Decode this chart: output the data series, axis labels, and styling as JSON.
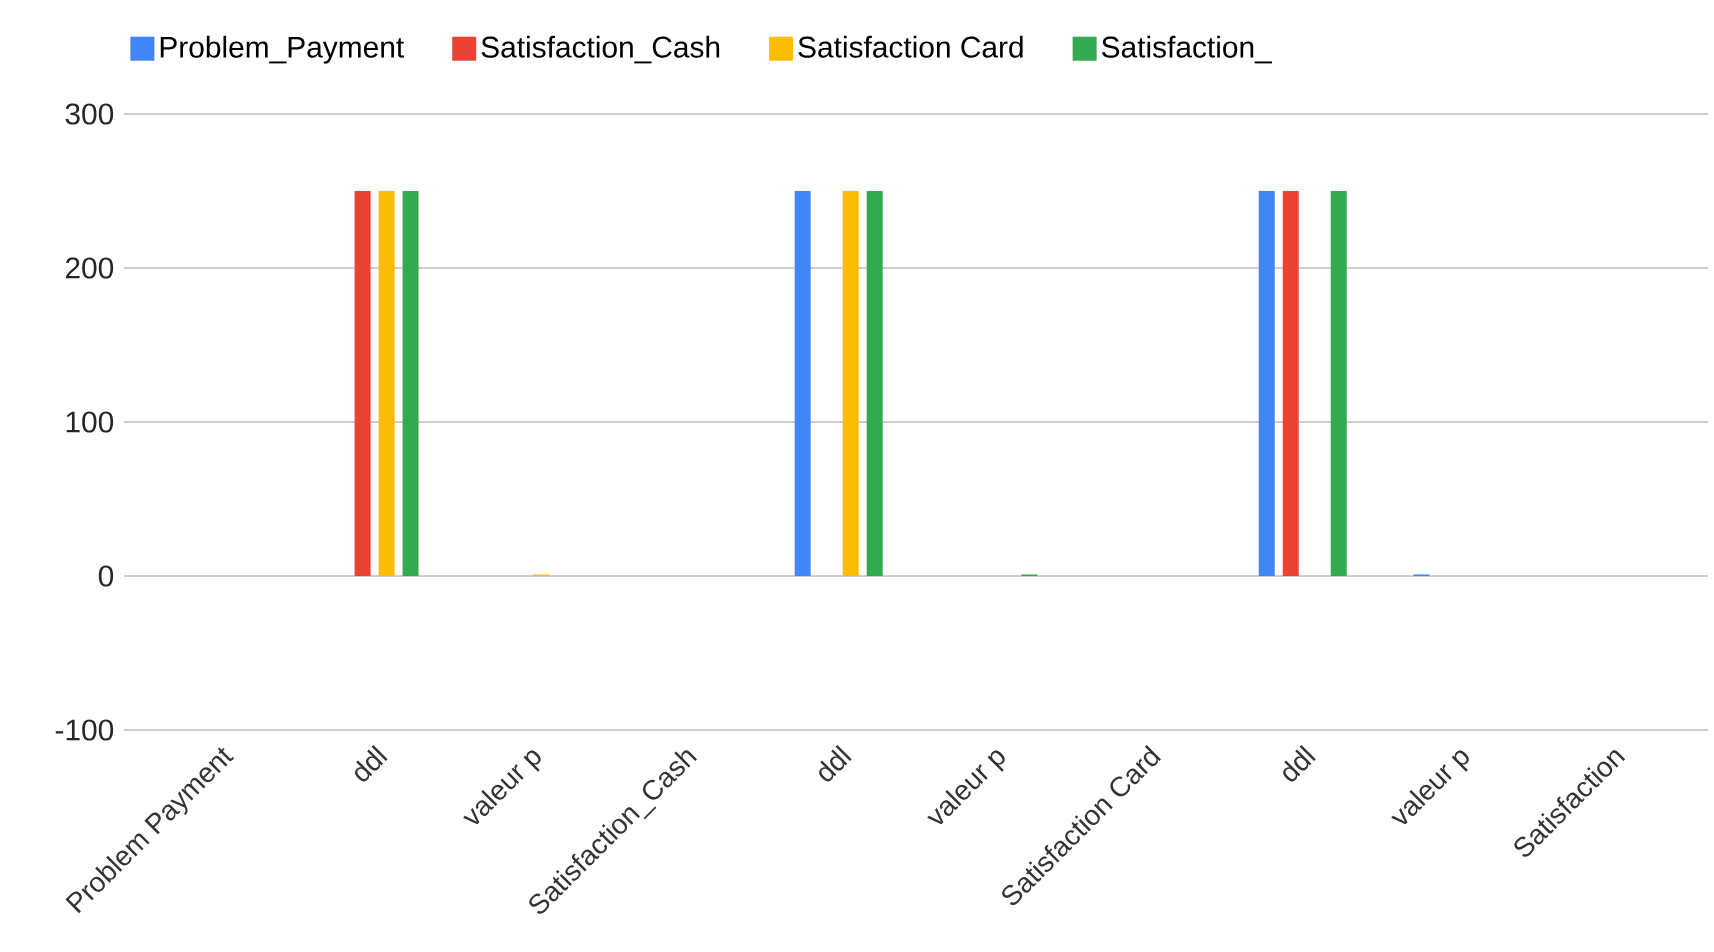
{
  "chart_data": {
    "type": "bar",
    "categories": [
      "Problem Payment",
      "ddl",
      "valeur p",
      "Satisfaction_Cash",
      "ddl",
      "valeur p",
      "Satisfaction Card",
      "ddl",
      "valeur p",
      "Satisfaction"
    ],
    "series": [
      {
        "name": "Problem_Payment",
        "color": "#4285f4",
        "values": [
          null,
          null,
          null,
          null,
          250,
          null,
          null,
          250,
          1,
          null
        ]
      },
      {
        "name": "Satisfaction_Cash",
        "color": "#ea4335",
        "values": [
          null,
          250,
          null,
          null,
          null,
          null,
          null,
          250,
          null,
          null
        ]
      },
      {
        "name": "Satisfaction Card",
        "color": "#fbbc04",
        "values": [
          null,
          250,
          1,
          null,
          250,
          null,
          null,
          null,
          null,
          null
        ]
      },
      {
        "name": "Satisfaction_",
        "color": "#34a853",
        "values": [
          null,
          250,
          null,
          null,
          250,
          1,
          null,
          250,
          null,
          null
        ]
      }
    ],
    "ylim": [
      -100,
      300
    ],
    "yticks": [
      -100,
      0,
      100,
      200,
      300
    ],
    "grid": "y",
    "legend": "top left"
  }
}
